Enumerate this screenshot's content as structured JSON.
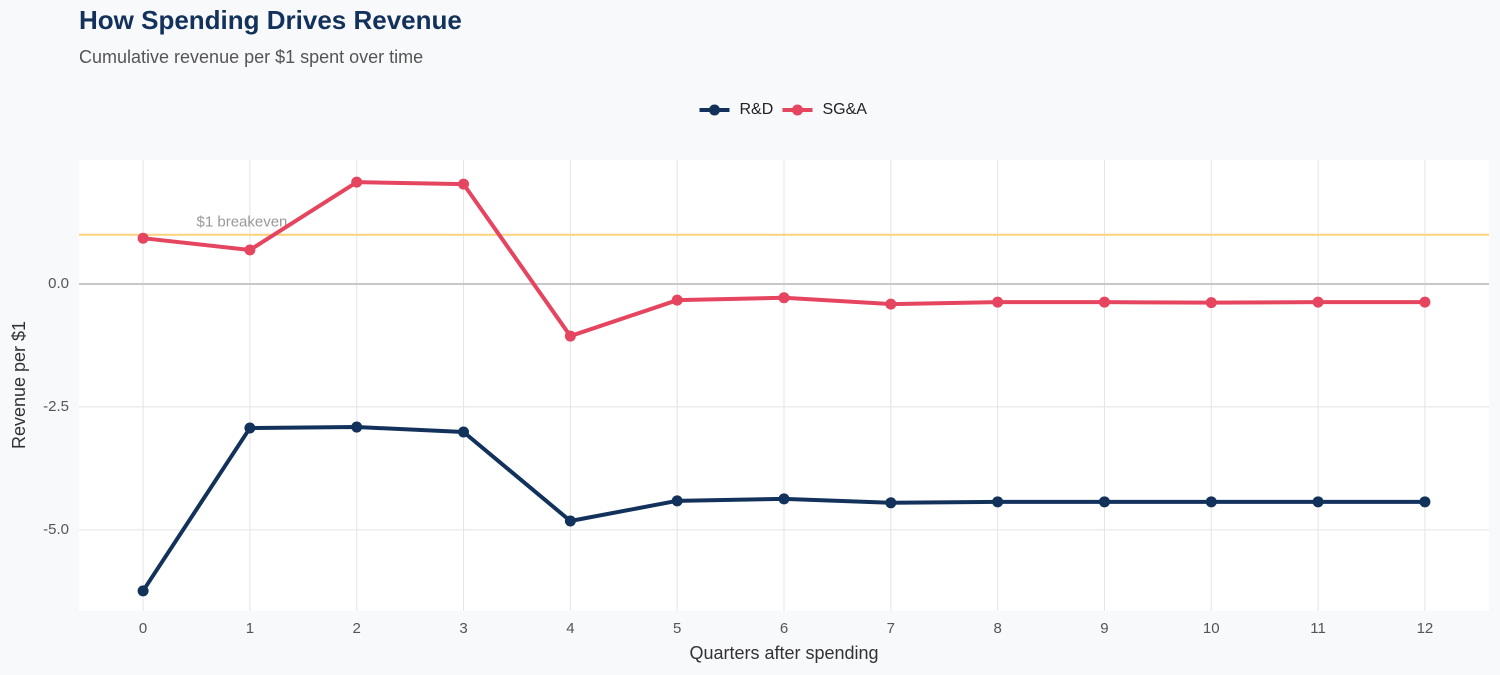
{
  "chart_data": {
    "type": "line",
    "title": "How Spending Drives Revenue",
    "subtitle": "Cumulative revenue per $1 spent over time",
    "x_label": "Quarters after spending",
    "y_label": "Revenue per $1",
    "x": [
      0,
      1,
      2,
      3,
      4,
      5,
      6,
      7,
      8,
      9,
      10,
      11,
      12
    ],
    "series": [
      {
        "name": "R&D",
        "color": "#13325b",
        "values": [
          -6.24,
          -2.93,
          -2.91,
          -3.01,
          -4.82,
          -4.41,
          -4.37,
          -4.45,
          -4.43,
          -4.43,
          -4.43,
          -4.43,
          -4.43
        ]
      },
      {
        "name": "SG&A",
        "color": "#e5455f",
        "values": [
          0.93,
          0.69,
          2.07,
          2.03,
          -1.06,
          -0.33,
          -0.28,
          -0.41,
          -0.37,
          -0.37,
          -0.38,
          -0.37,
          -0.37
        ]
      }
    ],
    "xlim": [
      -0.6,
      12.6
    ],
    "ylim": [
      -6.65,
      2.52
    ],
    "xticks": [
      0,
      1,
      2,
      3,
      4,
      5,
      6,
      7,
      8,
      9,
      10,
      11,
      12
    ],
    "yticks": [
      {
        "value": 0,
        "label": "0.0"
      },
      -2.5,
      {
        "value": -5,
        "label": "-5.0"
      }
    ],
    "reference_line": {
      "value": 1,
      "label": "$1 breakeven",
      "color": "#fdd27a"
    },
    "grid": true,
    "legend": "top"
  }
}
